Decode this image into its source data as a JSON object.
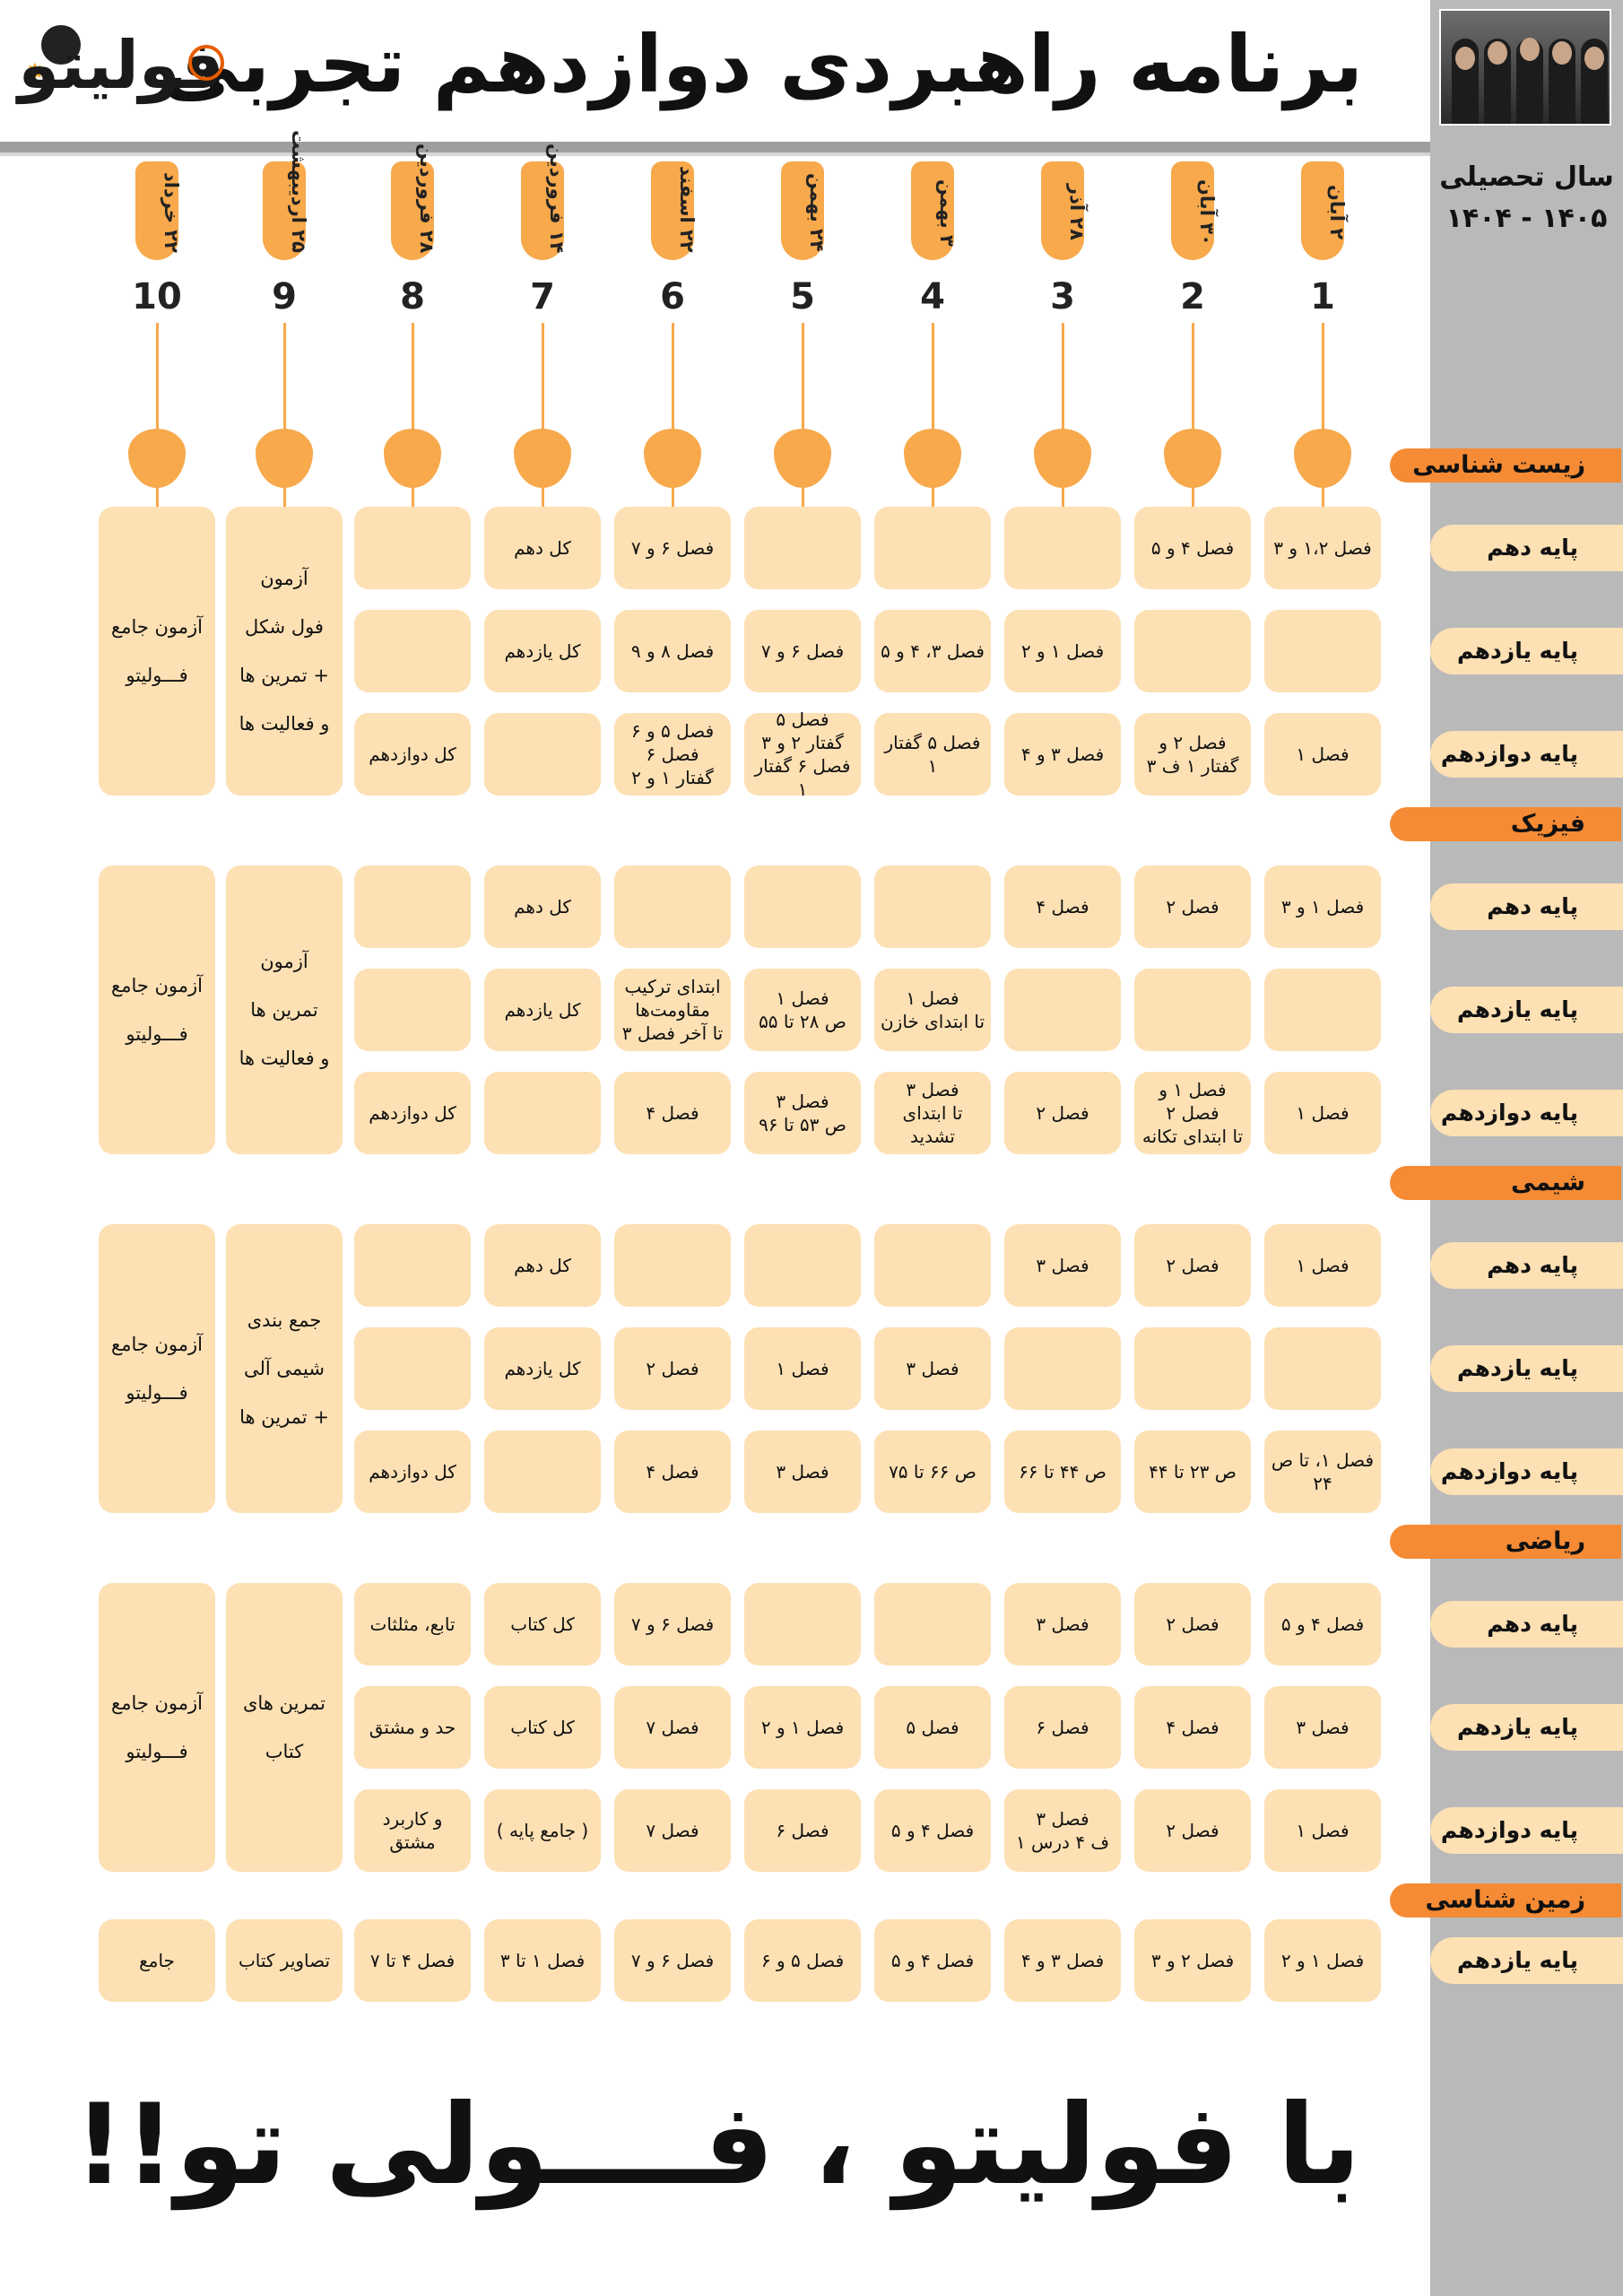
{
  "header": {
    "title": "برنامه راهبردی دوازدهم تجربی",
    "logo_text": "فولیتو",
    "year_label_line1": "سال تحصیلی",
    "year_label_line2": "۱۴۰۵ - ۱۴۰۴"
  },
  "columns": [
    {
      "num": "1",
      "date": "۲ آبان"
    },
    {
      "num": "2",
      "date": "۳۰ آبان"
    },
    {
      "num": "3",
      "date": "۲۸ آذر"
    },
    {
      "num": "4",
      "date": "۳ بهمن"
    },
    {
      "num": "5",
      "date": "۲۴ بهمن"
    },
    {
      "num": "6",
      "date": "۲۲ اسفند"
    },
    {
      "num": "7",
      "date": "۱۴ فروردین"
    },
    {
      "num": "8",
      "date": "۲۸ فروردین"
    },
    {
      "num": "9",
      "date": "۲۵ اردیبهشت"
    },
    {
      "num": "10",
      "date": "۲۲ خرداد"
    }
  ],
  "subjects": {
    "biology": {
      "label": "زیست شناسی",
      "grades": [
        "پایه دهم",
        "پایه یازدهم",
        "پایه دوازدهم"
      ],
      "rows": [
        [
          "فصل ۱،۲ و ۳",
          "فصل ۴ و ۵",
          "",
          "",
          "",
          "فصل ۶ و ۷",
          "کل دهم",
          ""
        ],
        [
          "",
          "",
          "فصل ۱ و ۲",
          "فصل ۳، ۴ و ۵",
          "فصل ۶ و ۷",
          "فصل ۸ و ۹",
          "کل یازدهم",
          ""
        ],
        [
          "فصل ۱",
          "فصل ۲ و\nگفتار ۱ ف ۳",
          "فصل ۳ و ۴",
          "فصل ۵ گفتار ۱",
          "فصل ۵\nگفتار ۲ و ۳\nفصل ۶ گفتار ۱",
          "فصل ۵ و ۶\nفصل ۶\nگفتار ۱ و ۲",
          "",
          "کل دوازدهم"
        ]
      ],
      "col9": "آزمون\nفول شکل\n+ تمرین ها\nو فعالیت ها",
      "col10": "آزمون جامع\nفـــولیتو"
    },
    "physics": {
      "label": "فیزیک",
      "grades": [
        "پایه دهم",
        "پایه یازدهم",
        "پایه دوازدهم"
      ],
      "rows": [
        [
          "فصل ۱ و ۳",
          "فصل ۲",
          "فصل ۴",
          "",
          "",
          "",
          "کل دهم",
          ""
        ],
        [
          "",
          "",
          "",
          "فصل ۱\nتا ابتدای خازن",
          "فصل ۱\nص ۲۸ تا ۵۵",
          "ابتدای ترکیب\nمقاومت‌ها\nتا آخر فصل ۳",
          "کل یازدهم",
          ""
        ],
        [
          "فصل ۱",
          "فصل ۱ و فصل ۲\nتا ابتدای تکانه",
          "فصل ۲",
          "فصل ۳\nتا ابتدای تشدید",
          "فصل ۳\nص ۵۳ تا ۹۶",
          "فصل ۴",
          "",
          "کل دوازدهم"
        ]
      ],
      "col9": "آزمون\nتمرین ها\nو فعالیت ها",
      "col10": "آزمون جامع\nفـــولیتو"
    },
    "chemistry": {
      "label": "شیمی",
      "grades": [
        "پایه دهم",
        "پایه یازدهم",
        "پایه دوازدهم"
      ],
      "rows": [
        [
          "فصل ۱",
          "فصل ۲",
          "فصل ۳",
          "",
          "",
          "",
          "کل دهم",
          ""
        ],
        [
          "",
          "",
          "",
          "فصل ۳",
          "فصل ۱",
          "فصل ۲",
          "کل یازدهم",
          ""
        ],
        [
          "فصل ۱، تا ص ۲۴",
          "ص ۲۳ تا ۴۴",
          "ص ۴۴ تا ۶۶",
          "ص ۶۶ تا ۷۵",
          "فصل ۳",
          "فصل ۴",
          "",
          "کل دوازدهم"
        ]
      ],
      "col9": "جمع بندی\nشیمی آلی\n+ تمرین ها",
      "col10": "آزمون جامع\nفـــولیتو"
    },
    "math": {
      "label": "ریاضی",
      "grades": [
        "پایه دهم",
        "پایه یازدهم",
        "پایه دوازدهم"
      ],
      "rows": [
        [
          "فصل ۴ و ۵",
          "فصل ۲",
          "فصل ۳",
          "",
          "",
          "فصل ۶ و ۷",
          "کل کتاب",
          "تابع، مثلثات"
        ],
        [
          "فصل ۳",
          "فصل ۴",
          "فصل ۶",
          "فصل ۵",
          "فصل ۱ و ۲",
          "فصل ۷",
          "کل کتاب",
          "حد و مشتق"
        ],
        [
          "فصل ۱",
          "فصل ۲",
          "فصل ۳\nف ۴ درس ۱",
          "فصل ۴ و ۵",
          "فصل ۶",
          "فصل ۷",
          "( جامع پایه )",
          "و کاربرد مشتق"
        ]
      ],
      "col9": "تمرین های\nکتاب",
      "col10": "آزمون جامع\nفـــولیتو"
    },
    "geology": {
      "label": "زمین شناسی",
      "grades": [
        "پایه یازدهم"
      ],
      "rows": [
        [
          "فصل ۱ و ۲",
          "فصل ۲ و ۳",
          "فصل ۳ و ۴",
          "فصل ۴ و ۵",
          "فصل ۵ و ۶",
          "فصل ۶ و ۷",
          "فصل ۱ تا ۳",
          "فصل ۴ تا ۷",
          "تصاویر کتاب",
          "جامع"
        ]
      ]
    }
  },
  "footer": {
    "slogan": "با فولیتو ، فــــولی تو!!"
  },
  "colors": {
    "accent": "#f7a94c",
    "subject_tab": "#f58b35",
    "cell": "#fde0b3",
    "sidebar": "#b9b9b9"
  }
}
